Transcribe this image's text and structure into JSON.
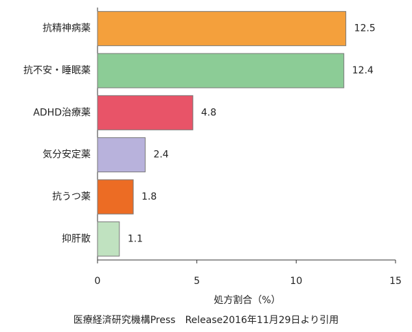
{
  "chart_data": {
    "type": "bar",
    "orientation": "horizontal",
    "categories": [
      "抗精神病薬",
      "抗不安・睡眠薬",
      "ADHD治療薬",
      "気分安定薬",
      "抗うつ薬",
      "抑肝散"
    ],
    "values": [
      12.5,
      12.4,
      4.8,
      2.4,
      1.8,
      1.1
    ],
    "colors": [
      "#f4a03c",
      "#8ccc96",
      "#e85468",
      "#b8b2dc",
      "#ec6c24",
      "#c0e2c0"
    ],
    "xlim": [
      0,
      15
    ],
    "xticks": [
      0,
      5,
      10,
      15
    ],
    "x_label": "処方割合（%）",
    "source": "医療経済研究機構Press　Release2016年11月29日より引用",
    "grid": false
  }
}
